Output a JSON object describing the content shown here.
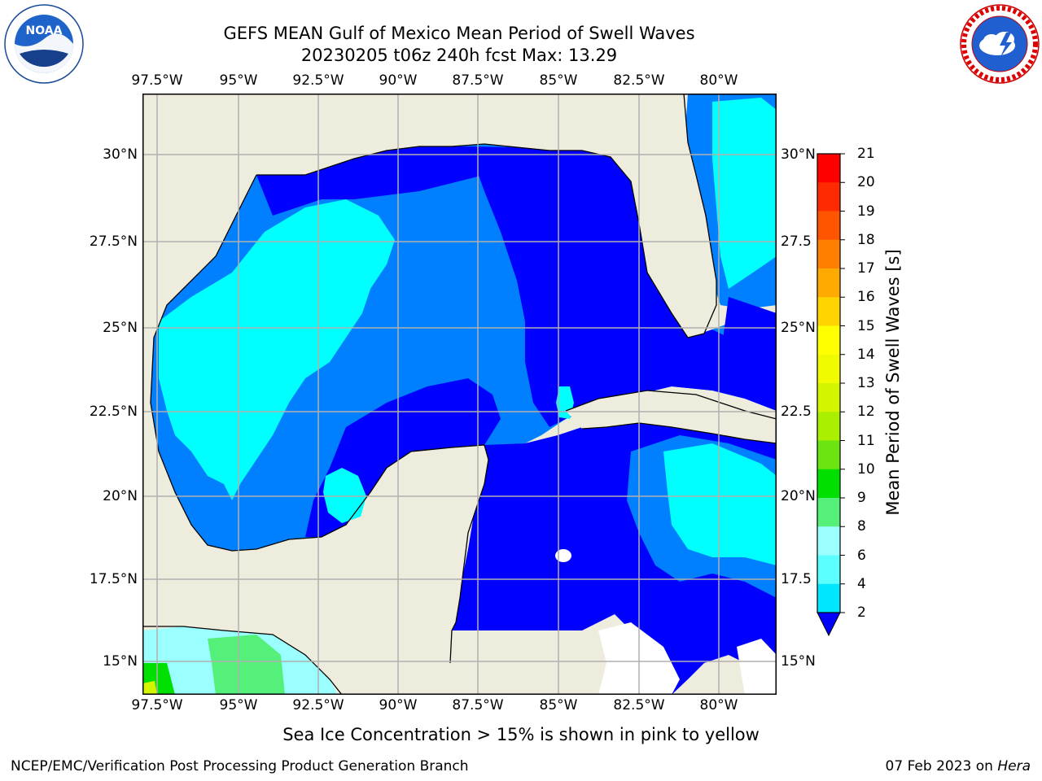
{
  "header": {
    "title_line1": "GEFS MEAN Gulf of Mexico Mean Period of Swell Waves",
    "title_line2": "20230205 t06z 240h fcst   Max: 13.29"
  },
  "logos": {
    "noaa_text": "NOAA",
    "noaa_ring_text": "NATIONAL OCEANIC AND ATMOSPHERIC ADMINISTRATION · U.S. DEPARTMENT OF COMMERCE",
    "nws_ring_text": "NATIONAL WEATHER SERVICE"
  },
  "map": {
    "lon_labels": [
      "97.5°W",
      "95°W",
      "92.5°W",
      "90°W",
      "87.5°W",
      "85°W",
      "82.5°W",
      "80°W"
    ],
    "lat_labels": [
      "30°N",
      "27.5°N",
      "25°N",
      "22.5°N",
      "20°N",
      "17.5°N",
      "15°N"
    ],
    "lat_labels_right": [
      "30°N",
      "27.5",
      "25°N",
      "22.5",
      "20°N",
      "17.5",
      "15°N"
    ],
    "colors": {
      "land": "#eeeddd",
      "grid": "#b0b0b0",
      "coast": "#000000"
    }
  },
  "colorbar": {
    "label": "Mean Period of Swell Waves [s]",
    "ticks": [
      "21",
      "20",
      "19",
      "18",
      "17",
      "16",
      "15",
      "14",
      "13",
      "12",
      "11",
      "10",
      "9",
      "8",
      "6",
      "4",
      "2"
    ],
    "colors": [
      "#ff0000",
      "#ff2b00",
      "#ff5500",
      "#ff8000",
      "#ffaa00",
      "#ffd400",
      "#ffff00",
      "#f0fb00",
      "#d4f500",
      "#aaee00",
      "#6be410",
      "#00e000",
      "#55f07a",
      "#9bffff",
      "#5cffff",
      "#00e6ff",
      "#0080ff",
      "#0000ff"
    ]
  },
  "footer": {
    "note": "Sea Ice Concentration > 15% is shown in pink to yellow",
    "credit": "NCEP/EMC/Verification Post Processing Product Generation Branch",
    "date": "07 Feb 2023 on ",
    "host": "Hera"
  }
}
